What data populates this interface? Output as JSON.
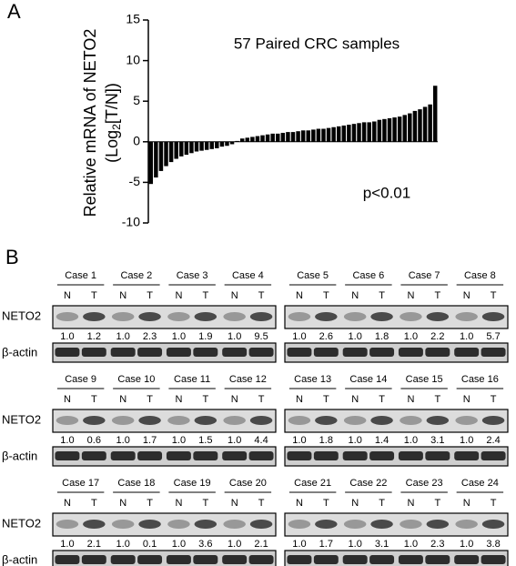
{
  "chart_data": {
    "type": "bar",
    "panel_label": "A",
    "title": "57 Paired CRC samples",
    "annotation": "p<0.01",
    "y_label": {
      "line1": "Relative mRNA of NETO2",
      "line2_pre": "(Log",
      "line2_sub": "2",
      "line2_post": "[T/N])"
    },
    "values": [
      -5.2,
      -4.4,
      -3.6,
      -3.0,
      -2.5,
      -2.1,
      -1.8,
      -1.6,
      -1.4,
      -1.2,
      -1.1,
      -1.0,
      -0.9,
      -0.8,
      -0.6,
      -0.5,
      -0.3,
      0.1,
      0.4,
      0.5,
      0.6,
      0.7,
      0.8,
      0.9,
      1.0,
      1.0,
      1.1,
      1.2,
      1.2,
      1.3,
      1.4,
      1.4,
      1.5,
      1.6,
      1.6,
      1.7,
      1.8,
      1.9,
      2.0,
      2.1,
      2.2,
      2.3,
      2.4,
      2.4,
      2.5,
      2.7,
      2.8,
      2.9,
      3.0,
      3.1,
      3.3,
      3.5,
      3.8,
      4.0,
      4.3,
      4.6,
      6.9
    ],
    "color": "#000000",
    "ylim": [
      -10,
      15
    ],
    "yticks": [
      -10,
      -5,
      0,
      5,
      10,
      15
    ]
  },
  "panel_b": {
    "label": "B",
    "row_labels": {
      "target": "NETO2",
      "control": "β-actin"
    },
    "lane_labels": [
      "N",
      "T"
    ],
    "panels": [
      {
        "cases": [
          {
            "name": "Case 1",
            "ratios": [
              "1.0",
              "1.2"
            ]
          },
          {
            "name": "Case 2",
            "ratios": [
              "1.0",
              "2.3"
            ]
          },
          {
            "name": "Case 3",
            "ratios": [
              "1.0",
              "1.9"
            ]
          },
          {
            "name": "Case 4",
            "ratios": [
              "1.0",
              "9.5"
            ]
          }
        ]
      },
      {
        "cases": [
          {
            "name": "Case 5",
            "ratios": [
              "1.0",
              "2.6"
            ]
          },
          {
            "name": "Case 6",
            "ratios": [
              "1.0",
              "1.8"
            ]
          },
          {
            "name": "Case 7",
            "ratios": [
              "1.0",
              "2.2"
            ]
          },
          {
            "name": "Case 8",
            "ratios": [
              "1.0",
              "5.7"
            ]
          }
        ]
      },
      {
        "cases": [
          {
            "name": "Case 9",
            "ratios": [
              "1.0",
              "0.6"
            ]
          },
          {
            "name": "Case 10",
            "ratios": [
              "1.0",
              "1.7"
            ]
          },
          {
            "name": "Case 11",
            "ratios": [
              "1.0",
              "1.5"
            ]
          },
          {
            "name": "Case 12",
            "ratios": [
              "1.0",
              "4.4"
            ]
          }
        ]
      },
      {
        "cases": [
          {
            "name": "Case 13",
            "ratios": [
              "1.0",
              "1.8"
            ]
          },
          {
            "name": "Case 14",
            "ratios": [
              "1.0",
              "1.4"
            ]
          },
          {
            "name": "Case 15",
            "ratios": [
              "1.0",
              "3.1"
            ]
          },
          {
            "name": "Case 16",
            "ratios": [
              "1.0",
              "2.4"
            ]
          }
        ]
      },
      {
        "cases": [
          {
            "name": "Case 17",
            "ratios": [
              "1.0",
              "2.1"
            ]
          },
          {
            "name": "Case 18",
            "ratios": [
              "1.0",
              "0.1"
            ]
          },
          {
            "name": "Case 19",
            "ratios": [
              "1.0",
              "3.6"
            ]
          },
          {
            "name": "Case 20",
            "ratios": [
              "1.0",
              "2.1"
            ]
          }
        ]
      },
      {
        "cases": [
          {
            "name": "Case 21",
            "ratios": [
              "1.0",
              "1.7"
            ]
          },
          {
            "name": "Case 22",
            "ratios": [
              "1.0",
              "3.1"
            ]
          },
          {
            "name": "Case 23",
            "ratios": [
              "1.0",
              "2.3"
            ]
          },
          {
            "name": "Case 24",
            "ratios": [
              "1.0",
              "3.8"
            ]
          }
        ]
      }
    ]
  }
}
